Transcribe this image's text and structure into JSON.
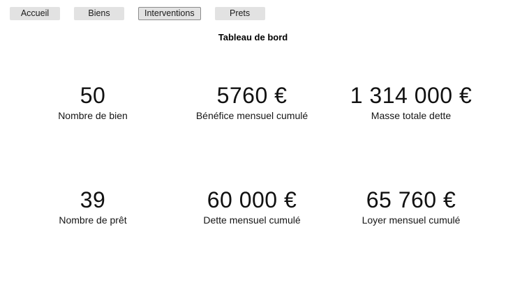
{
  "app": {
    "title": "Tableau de bord"
  },
  "colors": {
    "background": "#ffffff",
    "button_background": "#e2e2e2",
    "button_focus_border": "#8c8c8c",
    "text": "#1a1a1a"
  },
  "nav": {
    "items": [
      {
        "label": "Accueil",
        "focused": false
      },
      {
        "label": "Biens",
        "focused": false
      },
      {
        "label": "Interventions",
        "focused": true
      },
      {
        "label": "Prets",
        "focused": false
      }
    ]
  },
  "stats": [
    {
      "value": "50",
      "label": "Nombre de bien"
    },
    {
      "value": "5760 €",
      "label": "Bénéfice mensuel cumulé"
    },
    {
      "value": "1 314 000 €",
      "label": "Masse totale dette"
    },
    {
      "value": "39",
      "label": "Nombre de prêt"
    },
    {
      "value": "60 000 €",
      "label": "Dette mensuel cumulé"
    },
    {
      "value": "65 760 €",
      "label": "Loyer mensuel cumulé"
    }
  ]
}
